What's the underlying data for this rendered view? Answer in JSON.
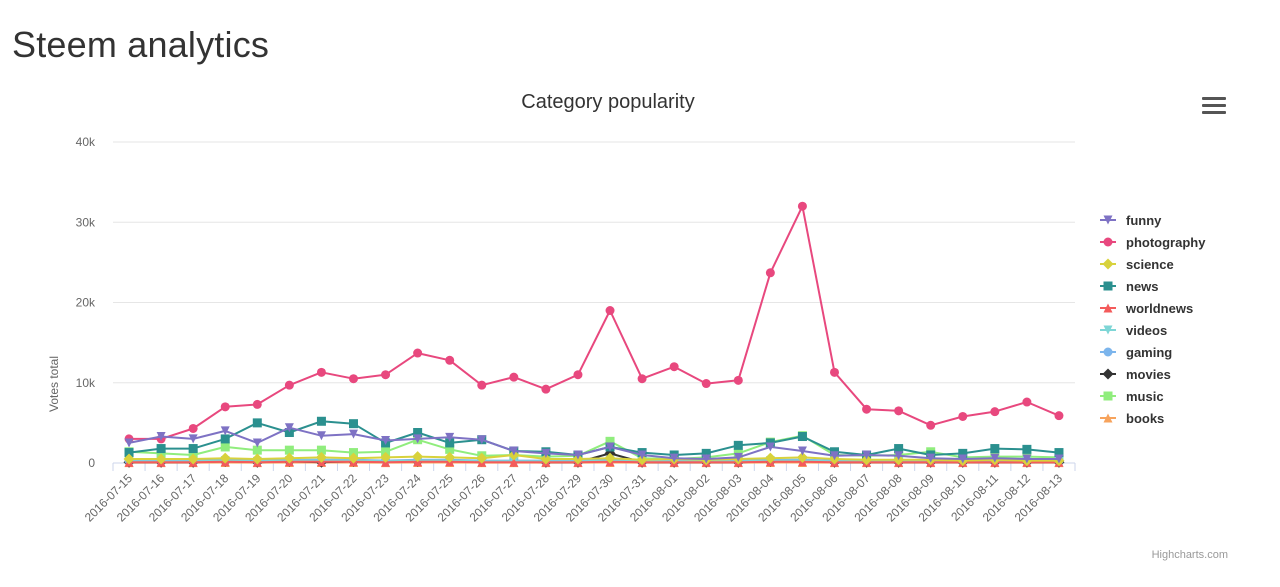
{
  "page": {
    "title": "Steem analytics"
  },
  "menu": {
    "icon": "hamburger-menu-icon"
  },
  "credits": "Highcharts.com",
  "chart_data": {
    "type": "line",
    "title": "Category popularity",
    "ylabel": "Votes total",
    "xlabel": "",
    "ylim": [
      0,
      40000
    ],
    "yticks": [
      "0",
      "10k",
      "20k",
      "30k",
      "40k"
    ],
    "grid": true,
    "legend_position": "right",
    "categories": [
      "2016-07-15",
      "2016-07-16",
      "2016-07-17",
      "2016-07-18",
      "2016-07-19",
      "2016-07-20",
      "2016-07-21",
      "2016-07-22",
      "2016-07-23",
      "2016-07-24",
      "2016-07-25",
      "2016-07-26",
      "2016-07-27",
      "2016-07-28",
      "2016-07-29",
      "2016-07-30",
      "2016-07-31",
      "2016-08-01",
      "2016-08-02",
      "2016-08-03",
      "2016-08-04",
      "2016-08-05",
      "2016-08-06",
      "2016-08-07",
      "2016-08-08",
      "2016-08-09",
      "2016-08-10",
      "2016-08-11",
      "2016-08-12",
      "2016-08-13"
    ],
    "series": [
      {
        "name": "funny",
        "color": "#7e72c4",
        "marker": "triangle-down",
        "values": [
          2500,
          3300,
          3000,
          4000,
          2500,
          4400,
          3400,
          3600,
          2800,
          3000,
          3200,
          2900,
          1500,
          1200,
          1000,
          2000,
          1000,
          600,
          500,
          700,
          2000,
          1500,
          900,
          1000,
          900,
          600,
          500,
          600,
          500,
          500
        ]
      },
      {
        "name": "photography",
        "color": "#e8487e",
        "marker": "circle",
        "values": [
          3000,
          3000,
          4300,
          7000,
          7300,
          9700,
          11300,
          10500,
          11000,
          13700,
          12800,
          9700,
          10700,
          9200,
          11000,
          19000,
          10500,
          12000,
          9900,
          10300,
          23700,
          32000,
          11300,
          6700,
          6500,
          4700,
          5800,
          6400,
          7600,
          5900
        ]
      },
      {
        "name": "science",
        "color": "#d8d23c",
        "marker": "diamond",
        "values": [
          500,
          500,
          500,
          600,
          500,
          600,
          700,
          600,
          700,
          800,
          700,
          600,
          1000,
          500,
          500,
          600,
          400,
          500,
          400,
          500,
          600,
          700,
          500,
          400,
          400,
          400,
          300,
          400,
          300,
          300
        ]
      },
      {
        "name": "news",
        "color": "#2b908f",
        "marker": "square",
        "values": [
          1300,
          1800,
          1800,
          3000,
          5000,
          3800,
          5200,
          4900,
          2500,
          3800,
          2500,
          2900,
          1500,
          1400,
          1000,
          2000,
          1300,
          1000,
          1200,
          2200,
          2500,
          3300,
          1400,
          1000,
          1800,
          1000,
          1200,
          1800,
          1700,
          1300
        ]
      },
      {
        "name": "worldnews",
        "color": "#f45b5b",
        "marker": "triangle",
        "values": [
          100,
          100,
          100,
          150,
          100,
          150,
          150,
          150,
          100,
          150,
          150,
          100,
          100,
          100,
          100,
          150,
          100,
          100,
          100,
          100,
          150,
          150,
          100,
          100,
          100,
          100,
          100,
          100,
          100,
          100
        ]
      },
      {
        "name": "videos",
        "color": "#7ed6d6",
        "marker": "triangle-down",
        "values": [
          200,
          200,
          200,
          300,
          200,
          300,
          300,
          300,
          200,
          300,
          300,
          200,
          200,
          200,
          200,
          300,
          200,
          200,
          200,
          200,
          300,
          300,
          200,
          200,
          200,
          200,
          200,
          200,
          200,
          200
        ]
      },
      {
        "name": "gaming",
        "color": "#7cb5ec",
        "marker": "circle",
        "values": [
          300,
          300,
          300,
          400,
          300,
          400,
          400,
          400,
          300,
          400,
          400,
          300,
          300,
          300,
          300,
          400,
          300,
          300,
          300,
          300,
          400,
          400,
          300,
          300,
          300,
          300,
          300,
          300,
          300,
          300
        ]
      },
      {
        "name": "movies",
        "color": "#333333",
        "marker": "diamond",
        "values": [
          100,
          100,
          100,
          200,
          100,
          200,
          100,
          200,
          300,
          200,
          300,
          200,
          200,
          100,
          100,
          1200,
          100,
          100,
          100,
          100,
          200,
          300,
          100,
          100,
          100,
          100,
          100,
          100,
          100,
          100
        ]
      },
      {
        "name": "music",
        "color": "#90ed7d",
        "marker": "square",
        "values": [
          1400,
          1200,
          1000,
          2000,
          1600,
          1600,
          1600,
          1300,
          1400,
          2900,
          1700,
          900,
          1000,
          800,
          900,
          2700,
          600,
          500,
          700,
          1200,
          2600,
          3400,
          1000,
          900,
          1000,
          1400,
          700,
          800,
          800,
          700
        ]
      },
      {
        "name": "books",
        "color": "#f7a35c",
        "marker": "triangle",
        "values": [
          50,
          50,
          50,
          60,
          50,
          60,
          60,
          60,
          50,
          60,
          60,
          50,
          50,
          50,
          50,
          60,
          50,
          50,
          50,
          50,
          60,
          60,
          50,
          50,
          50,
          50,
          50,
          50,
          50,
          50
        ]
      }
    ]
  }
}
